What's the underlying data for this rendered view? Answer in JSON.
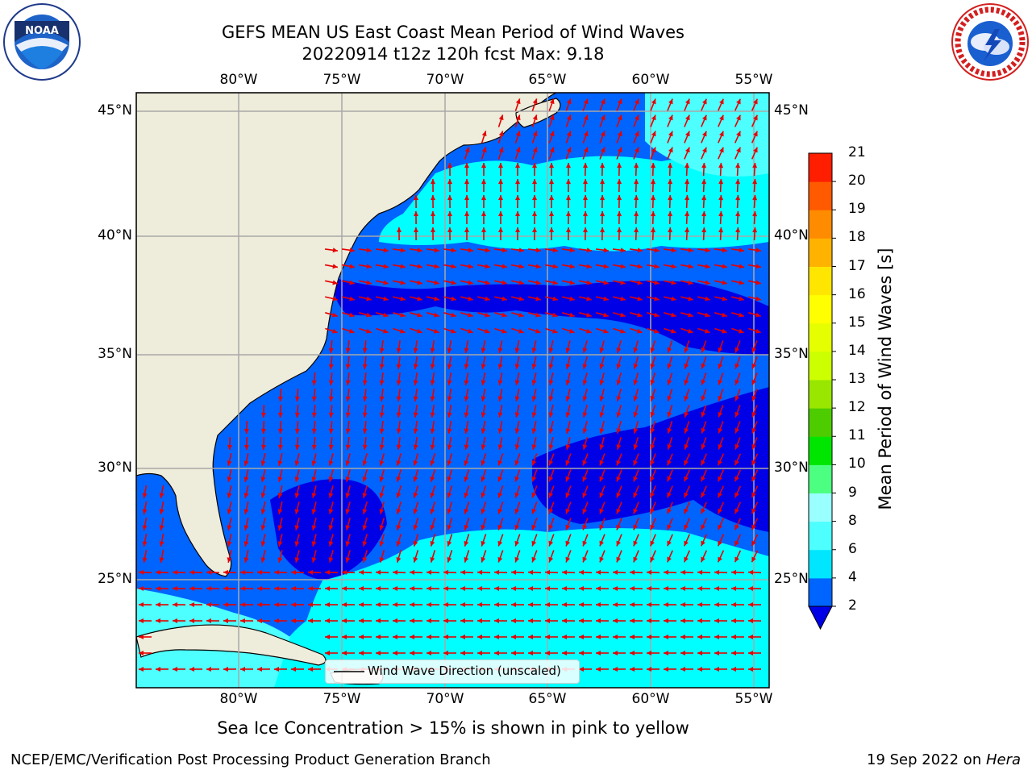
{
  "header": {
    "title_line1": "GEFS MEAN US East Coast Mean Period of Wind Waves",
    "title_line2": "20220914 t12z 120h fcst   Max: 9.18"
  },
  "logos": {
    "left": {
      "icon": "noaa-logo",
      "text": "NOAA"
    },
    "right": {
      "icon": "nws-logo",
      "text": "NATIONAL WEATHER SERVICE"
    }
  },
  "map": {
    "lon_labels": [
      "80°W",
      "75°W",
      "70°W",
      "65°W",
      "60°W",
      "55°W"
    ],
    "lat_labels": [
      "45°N",
      "40°N",
      "35°N",
      "30°N",
      "25°N"
    ],
    "legend_label": "Wind Wave Direction (unscaled)",
    "colors": {
      "land": "#eeecda",
      "ocean_low": "#0064ff",
      "ocean_vlow": "#0000e6",
      "ocean_mid": "#00ffff",
      "ocean_mid2": "#4dffff",
      "arrow": "#e60000",
      "grid": "#a8a8a8"
    }
  },
  "colorbar": {
    "label": "Mean Period of Wind Waves [s]",
    "ticks": [
      "2",
      "4",
      "6",
      "8",
      "9",
      "10",
      "11",
      "12",
      "13",
      "14",
      "15",
      "16",
      "17",
      "18",
      "19",
      "20",
      "21"
    ],
    "colors": [
      "#0064ff",
      "#00e6ff",
      "#4dffff",
      "#99ffff",
      "#4dff80",
      "#00e600",
      "#4dcc00",
      "#99e600",
      "#ccff00",
      "#e6ff00",
      "#ffff00",
      "#ffe600",
      "#ffb300",
      "#ff8c00",
      "#ff5a00",
      "#ff1e00"
    ],
    "under_color": "#0000e6"
  },
  "footer": {
    "note": "Sea Ice Concentration > 15% is shown in pink to yellow",
    "left": "NCEP/EMC/Verification Post Processing Product Generation Branch",
    "right_date": "19 Sep 2022 on ",
    "right_machine": "Hera"
  }
}
